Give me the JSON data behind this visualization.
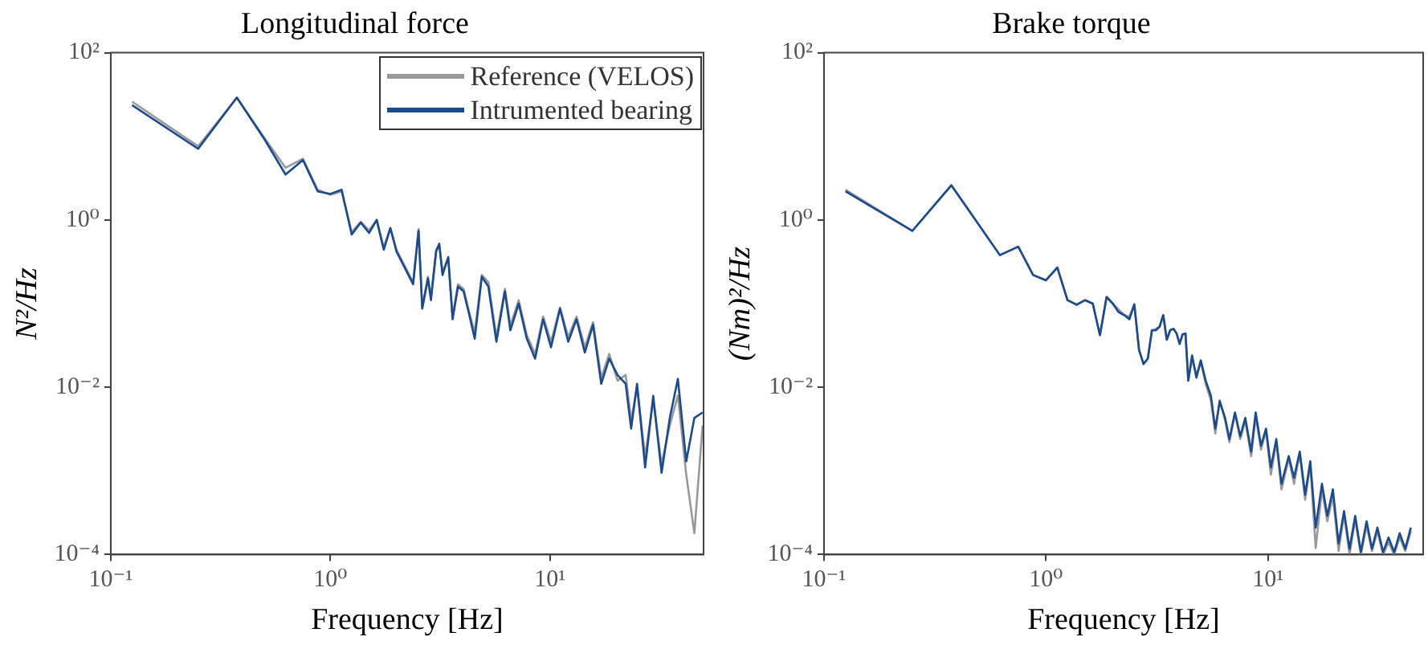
{
  "chart_data": [
    {
      "type": "line",
      "title": "Longitudinal force",
      "xlabel": "Frequency [Hz]",
      "ylabel": "N²/Hz",
      "log": "xy",
      "legend": "top right",
      "xlim": [
        0.1,
        50
      ],
      "ylim": [
        0.0001,
        100
      ],
      "xticks": [
        {
          "value": 0.1,
          "label": "10⁻¹"
        },
        {
          "value": 1,
          "label": "10⁰"
        },
        {
          "value": 10,
          "label": "10¹"
        }
      ],
      "yticks": [
        {
          "value": 0.0001,
          "label": "10⁻⁴"
        },
        {
          "value": 0.01,
          "label": "10⁻²"
        },
        {
          "value": 1,
          "label": "10⁰"
        },
        {
          "value": 100,
          "label": "10²"
        }
      ],
      "series": [
        {
          "name": "Reference (VELOS)",
          "color": "#999999",
          "x": [
            0.125,
            0.25,
            0.375,
            0.5,
            0.625,
            0.75,
            0.875,
            1,
            1.125,
            1.25,
            1.375,
            1.5,
            1.625,
            1.75,
            1.875,
            2,
            2.38,
            2.52,
            2.62,
            2.78,
            2.87,
            3.03,
            3.13,
            3.24,
            3.44,
            3.6,
            3.81,
            4.04,
            4.28,
            4.54,
            4.89,
            5.24,
            5.7,
            6.23,
            6.6,
            7.2,
            7.84,
            8.55,
            9.3,
            10.1,
            11.1,
            12.1,
            13.2,
            14.4,
            15.7,
            17.1,
            18.6,
            20.3,
            22.1,
            23.4,
            24.9,
            27.1,
            29.5,
            32.2,
            35.1,
            38.2,
            41.7,
            45.4,
            49.5
          ],
          "values": [
            26,
            7.6,
            29,
            9.6,
            4.2,
            5.4,
            2.3,
            2.0,
            2.2,
            0.72,
            0.95,
            0.75,
            1.0,
            0.47,
            0.8,
            0.44,
            0.18,
            0.78,
            0.09,
            0.21,
            0.12,
            0.44,
            0.5,
            0.24,
            0.35,
            0.07,
            0.17,
            0.15,
            0.08,
            0.045,
            0.22,
            0.18,
            0.04,
            0.15,
            0.055,
            0.11,
            0.042,
            0.025,
            0.07,
            0.035,
            0.09,
            0.04,
            0.07,
            0.03,
            0.06,
            0.013,
            0.025,
            0.012,
            0.014,
            0.004,
            0.01,
            0.0015,
            0.007,
            0.0012,
            0.0035,
            0.008,
            0.0009,
            0.00018,
            0.0035
          ]
        },
        {
          "name": "Intrumented bearing",
          "color": "#1a4a8f",
          "x": [
            0.125,
            0.25,
            0.375,
            0.5,
            0.625,
            0.75,
            0.875,
            1,
            1.125,
            1.25,
            1.375,
            1.5,
            1.625,
            1.75,
            1.875,
            2,
            2.38,
            2.52,
            2.62,
            2.78,
            2.87,
            3.03,
            3.13,
            3.24,
            3.44,
            3.6,
            3.81,
            4.04,
            4.28,
            4.54,
            4.89,
            5.24,
            5.7,
            6.23,
            6.6,
            7.2,
            7.84,
            8.55,
            9.3,
            10.1,
            11.1,
            12.1,
            13.2,
            14.4,
            15.7,
            17.1,
            18.6,
            20.3,
            22.1,
            23.4,
            24.9,
            27.1,
            29.5,
            32.2,
            35.1,
            38.2,
            41.7,
            45.4,
            49.5
          ],
          "values": [
            23.6,
            7.1,
            29,
            9.3,
            3.5,
            5.2,
            2.2,
            2.05,
            2.3,
            0.67,
            0.93,
            0.7,
            1.0,
            0.44,
            0.8,
            0.42,
            0.17,
            0.74,
            0.087,
            0.2,
            0.11,
            0.42,
            0.52,
            0.22,
            0.36,
            0.065,
            0.16,
            0.14,
            0.075,
            0.038,
            0.21,
            0.16,
            0.035,
            0.14,
            0.048,
            0.1,
            0.038,
            0.022,
            0.065,
            0.03,
            0.087,
            0.035,
            0.065,
            0.026,
            0.056,
            0.011,
            0.022,
            0.014,
            0.011,
            0.0032,
            0.011,
            0.0011,
            0.0079,
            0.00095,
            0.0043,
            0.0126,
            0.0013,
            0.0043,
            0.005
          ]
        }
      ]
    },
    {
      "type": "line",
      "title": "Brake torque",
      "xlabel": "Frequency [Hz]",
      "ylabel": "(Nm)²/Hz",
      "log": "xy",
      "xlim": [
        0.1,
        50
      ],
      "ylim": [
        0.0001,
        100
      ],
      "xticks": [
        {
          "value": 0.1,
          "label": "10⁻¹"
        },
        {
          "value": 1,
          "label": "10⁰"
        },
        {
          "value": 10,
          "label": "10¹"
        }
      ],
      "yticks": [
        {
          "value": 0.0001,
          "label": "10⁻⁴"
        },
        {
          "value": 0.01,
          "label": "10⁻²"
        },
        {
          "value": 1,
          "label": "10⁰"
        },
        {
          "value": 100,
          "label": "10²"
        }
      ],
      "series": [
        {
          "color": "#999999",
          "x": [
            0.125,
            0.25,
            0.375,
            0.62,
            0.75,
            0.875,
            1,
            1.125,
            1.25,
            1.375,
            1.5,
            1.625,
            1.75,
            1.875,
            2,
            2.125,
            2.25,
            2.375,
            2.5,
            2.625,
            2.75,
            2.875,
            3,
            3.125,
            3.25,
            3.375,
            3.5,
            3.625,
            3.75,
            3.875,
            4,
            4.125,
            4.25,
            4.375,
            4.55,
            4.76,
            4.98,
            5.24,
            5.53,
            5.79,
            6.06,
            6.41,
            6.7,
            7.1,
            7.5,
            7.9,
            8.4,
            8.8,
            9.3,
            9.8,
            10.3,
            10.9,
            11.5,
            12.4,
            13.1,
            13.9,
            14.7,
            15.5,
            16.4,
            17.5,
            18.5,
            19.6,
            20.8,
            22,
            23.3,
            24.7,
            26.2,
            27.8,
            29.4,
            31.1,
            33,
            34.9,
            37,
            39.2,
            41.5,
            44
          ],
          "values": [
            2.3,
            0.74,
            2.6,
            0.38,
            0.48,
            0.22,
            0.19,
            0.27,
            0.11,
            0.097,
            0.11,
            0.1,
            0.042,
            0.12,
            0.1,
            0.085,
            0.073,
            0.07,
            0.098,
            0.028,
            0.019,
            0.022,
            0.048,
            0.05,
            0.053,
            0.073,
            0.037,
            0.048,
            0.05,
            0.044,
            0.033,
            0.043,
            0.044,
            0.012,
            0.022,
            0.014,
            0.02,
            0.011,
            0.007,
            0.0028,
            0.007,
            0.004,
            0.0022,
            0.0048,
            0.0024,
            0.004,
            0.0015,
            0.0045,
            0.0018,
            0.003,
            0.0009,
            0.0022,
            0.0006,
            0.0014,
            0.0007,
            0.0016,
            0.00045,
            0.0012,
            0.00012,
            0.0006,
            0.00025,
            0.0005,
            0.00011,
            0.0003,
            0.0001,
            0.00026,
            0.0001,
            0.00022,
            0.00011,
            0.00019,
            0.0001,
            0.00014,
            0.0001,
            0.00016,
            0.00011,
            0.00019
          ]
        },
        {
          "color": "#1a4a8f",
          "x": [
            0.125,
            0.25,
            0.375,
            0.62,
            0.75,
            0.875,
            1,
            1.125,
            1.25,
            1.375,
            1.5,
            1.625,
            1.75,
            1.875,
            2,
            2.125,
            2.25,
            2.375,
            2.5,
            2.625,
            2.75,
            2.875,
            3,
            3.125,
            3.25,
            3.375,
            3.5,
            3.625,
            3.75,
            3.875,
            4,
            4.125,
            4.25,
            4.375,
            4.55,
            4.76,
            4.98,
            5.24,
            5.53,
            5.79,
            6.06,
            6.41,
            6.7,
            7.1,
            7.5,
            7.9,
            8.4,
            8.8,
            9.3,
            9.8,
            10.3,
            10.9,
            11.5,
            12.4,
            13.1,
            13.9,
            14.7,
            15.5,
            16.4,
            17.5,
            18.5,
            19.6,
            20.8,
            22,
            23.3,
            24.7,
            26.2,
            27.8,
            29.4,
            31.1,
            33,
            34.9,
            37,
            39.2,
            41.5,
            44
          ],
          "values": [
            2.2,
            0.74,
            2.6,
            0.38,
            0.48,
            0.22,
            0.19,
            0.27,
            0.11,
            0.097,
            0.11,
            0.1,
            0.042,
            0.12,
            0.1,
            0.079,
            0.073,
            0.065,
            0.098,
            0.028,
            0.019,
            0.022,
            0.048,
            0.048,
            0.053,
            0.073,
            0.037,
            0.048,
            0.05,
            0.044,
            0.033,
            0.043,
            0.044,
            0.012,
            0.024,
            0.013,
            0.021,
            0.012,
            0.0079,
            0.0032,
            0.0068,
            0.0043,
            0.0024,
            0.005,
            0.0026,
            0.0043,
            0.0017,
            0.005,
            0.002,
            0.0032,
            0.0011,
            0.0024,
            0.0007,
            0.0015,
            0.00083,
            0.0017,
            0.00052,
            0.0013,
            0.00021,
            0.0007,
            0.00029,
            0.0006,
            0.000135,
            0.00033,
            0.000117,
            0.00029,
            0.000107,
            0.00025,
            0.000117,
            0.00021,
            0.000107,
            0.00016,
            0.000107,
            0.00018,
            0.000117,
            0.00021
          ]
        }
      ]
    }
  ]
}
